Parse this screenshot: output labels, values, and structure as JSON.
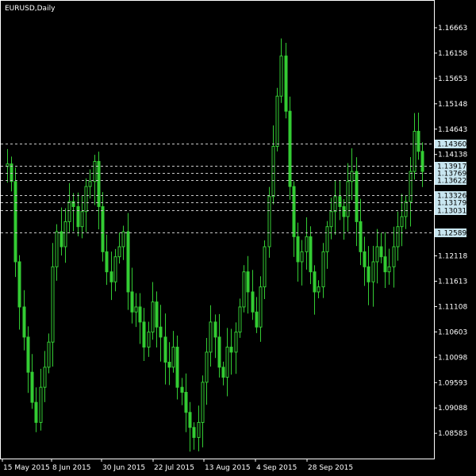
{
  "window": {
    "symbol_label": "EURUSD,Daily"
  },
  "colors": {
    "background": "#000000",
    "frame": "#ffffff",
    "candles": "#33cc33",
    "candle_bright": "#aaffaa",
    "level_lines": "#c8c8c8",
    "level_label_bg": "#c8e6f0"
  },
  "chart_data": {
    "type": "candlestick",
    "ylim": [
      1.0808,
      1.172
    ],
    "y_ticks": [
      "1.16663",
      "1.16158",
      "1.15653",
      "1.15148",
      "1.14643",
      "1.14138",
      "1.12118",
      "1.11613",
      "1.11108",
      "1.10603",
      "1.10098",
      "1.09593",
      "1.09088",
      "1.08583"
    ],
    "x_ticks": [
      "15 May 2015",
      "8 Jun 2015",
      "30 Jun 2015",
      "22 Jul 2015",
      "13 Aug 2015",
      "4 Sep 2015",
      "28 Sep 2015"
    ],
    "levels": [
      "1.14360",
      "1.13917",
      "1.13769",
      "1.13622",
      "1.13326",
      "1.13179",
      "1.13031",
      "1.12589"
    ],
    "closes": [
      1.1395,
      1.136,
      1.12,
      1.111,
      1.105,
      1.098,
      1.092,
      1.088,
      1.095,
      1.099,
      1.104,
      1.119,
      1.126,
      1.123,
      1.128,
      1.132,
      1.131,
      1.127,
      1.13,
      1.135,
      1.136,
      1.14,
      1.131,
      1.122,
      1.118,
      1.116,
      1.121,
      1.123,
      1.126,
      1.114,
      1.11,
      1.111,
      1.108,
      1.103,
      1.106,
      1.112,
      1.107,
      1.105,
      1.1,
      1.099,
      1.103,
      1.095,
      1.094,
      1.09,
      1.087,
      1.085,
      1.088,
      1.096,
      1.102,
      1.108,
      1.105,
      1.099,
      1.097,
      1.103,
      1.102,
      1.106,
      1.111,
      1.118,
      1.114,
      1.11,
      1.107,
      1.115,
      1.123,
      1.133,
      1.143,
      1.153,
      1.161,
      1.15,
      1.135,
      1.125,
      1.12,
      1.122,
      1.125,
      1.118,
      1.114,
      1.115,
      1.122,
      1.127,
      1.13,
      1.133,
      1.131,
      1.129,
      1.136,
      1.138,
      1.128,
      1.122,
      1.119,
      1.116,
      1.12,
      1.123,
      1.121,
      1.118,
      1.119,
      1.123,
      1.127,
      1.129,
      1.132,
      1.138,
      1.146,
      1.142,
      1.138
    ]
  }
}
